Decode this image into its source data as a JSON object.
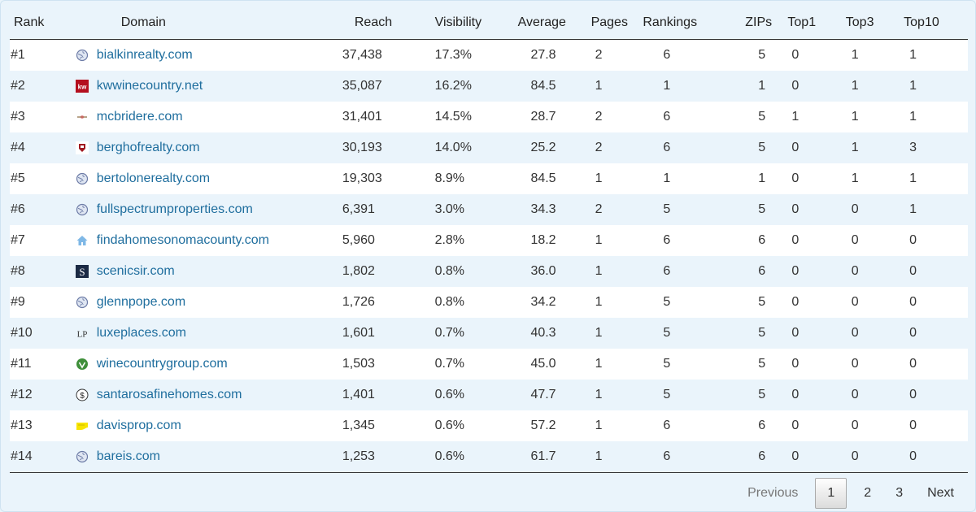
{
  "table": {
    "headers": [
      "Rank",
      "Domain",
      "Reach",
      "Visibility",
      "Average",
      "Pages",
      "Rankings",
      "ZIPs",
      "Top1",
      "Top3",
      "Top10"
    ],
    "rows": [
      {
        "rank": "#1",
        "domain": "bialkinrealty.com",
        "icon": "globe-icon",
        "reach": "37,438",
        "visibility": "17.3%",
        "average": "27.8",
        "pages": "2",
        "rankings": "6",
        "zips": "5",
        "top1": "0",
        "top3": "1",
        "top10": "1"
      },
      {
        "rank": "#2",
        "domain": "kwwinecountry.net",
        "icon": "kw-logo-icon",
        "reach": "35,087",
        "visibility": "16.2%",
        "average": "84.5",
        "pages": "1",
        "rankings": "1",
        "zips": "1",
        "top1": "0",
        "top3": "1",
        "top10": "1"
      },
      {
        "rank": "#3",
        "domain": "mcbridere.com",
        "icon": "mcbride-logo-icon",
        "reach": "31,401",
        "visibility": "14.5%",
        "average": "28.7",
        "pages": "2",
        "rankings": "6",
        "zips": "5",
        "top1": "1",
        "top3": "1",
        "top10": "1"
      },
      {
        "rank": "#4",
        "domain": "berghofrealty.com",
        "icon": "berghof-logo-icon",
        "reach": "30,193",
        "visibility": "14.0%",
        "average": "25.2",
        "pages": "2",
        "rankings": "6",
        "zips": "5",
        "top1": "0",
        "top3": "1",
        "top10": "3"
      },
      {
        "rank": "#5",
        "domain": "bertolonerealty.com",
        "icon": "globe-icon",
        "reach": "19,303",
        "visibility": "8.9%",
        "average": "84.5",
        "pages": "1",
        "rankings": "1",
        "zips": "1",
        "top1": "0",
        "top3": "1",
        "top10": "1"
      },
      {
        "rank": "#6",
        "domain": "fullspectrumproperties.com",
        "icon": "globe-icon",
        "reach": "6,391",
        "visibility": "3.0%",
        "average": "34.3",
        "pages": "2",
        "rankings": "5",
        "zips": "5",
        "top1": "0",
        "top3": "0",
        "top10": "1"
      },
      {
        "rank": "#7",
        "domain": "findahomesonomacounty.com",
        "icon": "house-icon",
        "reach": "5,960",
        "visibility": "2.8%",
        "average": "18.2",
        "pages": "1",
        "rankings": "6",
        "zips": "6",
        "top1": "0",
        "top3": "0",
        "top10": "0"
      },
      {
        "rank": "#8",
        "domain": "scenicsir.com",
        "icon": "s-logo-icon",
        "reach": "1,802",
        "visibility": "0.8%",
        "average": "36.0",
        "pages": "1",
        "rankings": "6",
        "zips": "6",
        "top1": "0",
        "top3": "0",
        "top10": "0"
      },
      {
        "rank": "#9",
        "domain": "glennpope.com",
        "icon": "globe-icon",
        "reach": "1,726",
        "visibility": "0.8%",
        "average": "34.2",
        "pages": "1",
        "rankings": "5",
        "zips": "5",
        "top1": "0",
        "top3": "0",
        "top10": "0"
      },
      {
        "rank": "#10",
        "domain": "luxeplaces.com",
        "icon": "lp-logo-icon",
        "reach": "1,601",
        "visibility": "0.7%",
        "average": "40.3",
        "pages": "1",
        "rankings": "5",
        "zips": "5",
        "top1": "0",
        "top3": "0",
        "top10": "0"
      },
      {
        "rank": "#11",
        "domain": "winecountrygroup.com",
        "icon": "leaf-logo-icon",
        "reach": "1,503",
        "visibility": "0.7%",
        "average": "45.0",
        "pages": "1",
        "rankings": "5",
        "zips": "5",
        "top1": "0",
        "top3": "0",
        "top10": "0"
      },
      {
        "rank": "#12",
        "domain": "santarosafinehomes.com",
        "icon": "dollar-logo-icon",
        "reach": "1,401",
        "visibility": "0.6%",
        "average": "47.7",
        "pages": "1",
        "rankings": "5",
        "zips": "5",
        "top1": "0",
        "top3": "0",
        "top10": "0"
      },
      {
        "rank": "#13",
        "domain": "davisprop.com",
        "icon": "yellow-tag-icon",
        "reach": "1,345",
        "visibility": "0.6%",
        "average": "57.2",
        "pages": "1",
        "rankings": "6",
        "zips": "6",
        "top1": "0",
        "top3": "0",
        "top10": "0"
      },
      {
        "rank": "#14",
        "domain": "bareis.com",
        "icon": "globe-icon",
        "reach": "1,253",
        "visibility": "0.6%",
        "average": "61.7",
        "pages": "1",
        "rankings": "6",
        "zips": "6",
        "top1": "0",
        "top3": "0",
        "top10": "0"
      }
    ]
  },
  "pagination": {
    "previous": "Previous",
    "pages": [
      "1",
      "2",
      "3"
    ],
    "current": "1",
    "next": "Next"
  },
  "colors": {
    "link": "#1f6e9e",
    "stripe": "#eaf4fb",
    "row": "#ffffff"
  }
}
